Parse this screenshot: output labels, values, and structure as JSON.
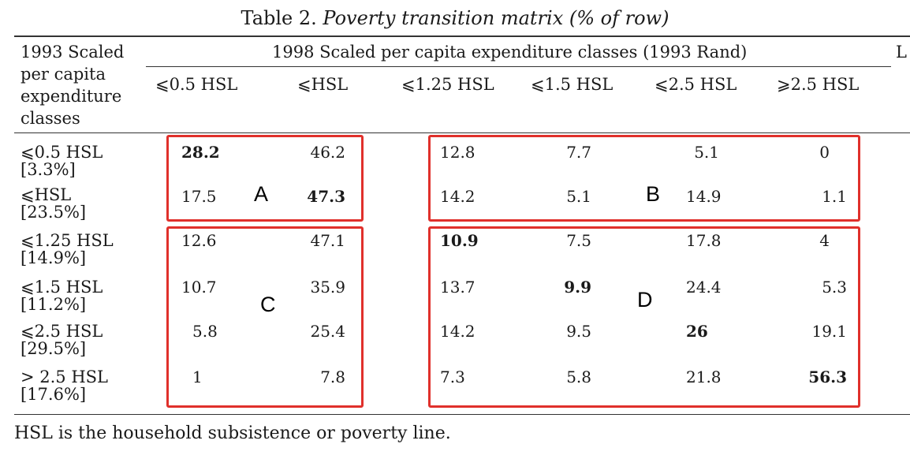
{
  "table": {
    "caption_prefix": "Table 2.",
    "caption_title": "Poverty transition matrix (% of row)",
    "stub_header": [
      "1993 Scaled",
      "per capita",
      "expenditure",
      "classes"
    ],
    "spanner": "1998 Scaled per capita expenditure classes (1993 Rand)",
    "cut_off_header": "L",
    "columns": [
      "⩽0.5 HSL",
      "⩽HSL",
      "⩽1.25 HSL",
      "⩽1.5 HSL",
      "⩽2.5 HSL",
      "⩾2.5 HSL"
    ],
    "rows": [
      {
        "label": "⩽0.5 HSL",
        "share": "[3.3%]",
        "values": [
          "28.2",
          "46.2",
          "12.8",
          "7.7",
          "5.1",
          "0"
        ]
      },
      {
        "label": "⩽HSL",
        "share": "[23.5%]",
        "values": [
          "17.5",
          "47.3",
          "14.2",
          "5.1",
          "14.9",
          "1.1"
        ]
      },
      {
        "label": "⩽1.25 HSL",
        "share": "[14.9%]",
        "values": [
          "12.6",
          "47.1",
          "10.9",
          "7.5",
          "17.8",
          "4"
        ]
      },
      {
        "label": "⩽1.5 HSL",
        "share": "[11.2%]",
        "values": [
          "10.7",
          "35.9",
          "13.7",
          "9.9",
          "24.4",
          "5.3"
        ]
      },
      {
        "label": "⩽2.5 HSL",
        "share": "[29.5%]",
        "values": [
          "5.8",
          "25.4",
          "14.2",
          "9.5",
          "26",
          "19.1"
        ]
      },
      {
        "label": "> 2.5 HSL",
        "share": "[17.6%]",
        "values": [
          "1",
          "7.8",
          "7.3",
          "5.8",
          "21.8",
          "56.3"
        ]
      }
    ],
    "footnote": "HSL is the household subsistence or poverty line."
  },
  "regions": {
    "a": "A",
    "b": "B",
    "c": "C",
    "d": "D",
    "box_color": "#e0302b"
  }
}
